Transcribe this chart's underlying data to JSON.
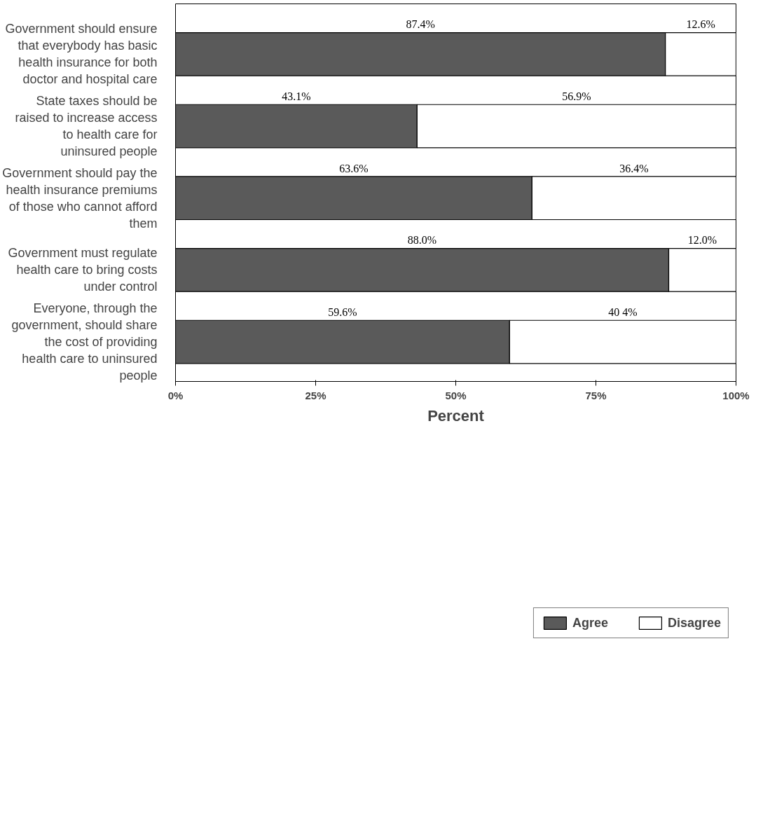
{
  "chart_data": {
    "type": "bar",
    "orientation": "horizontal",
    "stacked": true,
    "categories": [
      "Government should ensure that everybody has basic health insurance for both doctor and hospital care",
      "State taxes should be raised to increase access to health care for uninsured people",
      "Government should pay the health insurance premiums of those who cannot afford them",
      "Government must regulate health care to bring costs under control",
      "Everyone, through the government, should share the cost of providing health care to uninsured people"
    ],
    "series": [
      {
        "name": "Agree",
        "color": "#5a5a5a",
        "values": [
          87.4,
          43.1,
          63.6,
          88.0,
          59.6
        ],
        "value_labels": [
          "87.4%",
          "43.1%",
          "63.6%",
          "88.0%",
          "59.6%"
        ]
      },
      {
        "name": "Disagree",
        "color": "#ffffff",
        "values": [
          12.6,
          56.9,
          36.4,
          12.0,
          40.4
        ],
        "value_labels": [
          "12.6%",
          "56.9%",
          "36.4%",
          "12.0%",
          "40 4%"
        ]
      }
    ],
    "xlim": [
      0,
      100
    ],
    "xticks": [
      {
        "value": 0,
        "label": "0%"
      },
      {
        "value": 25,
        "label": "25%"
      },
      {
        "value": 50,
        "label": "50%"
      },
      {
        "value": 75,
        "label": "75%"
      },
      {
        "value": 100,
        "label": "100%"
      }
    ],
    "xlabel": "Percent",
    "legend": "bottom",
    "grid": false
  }
}
